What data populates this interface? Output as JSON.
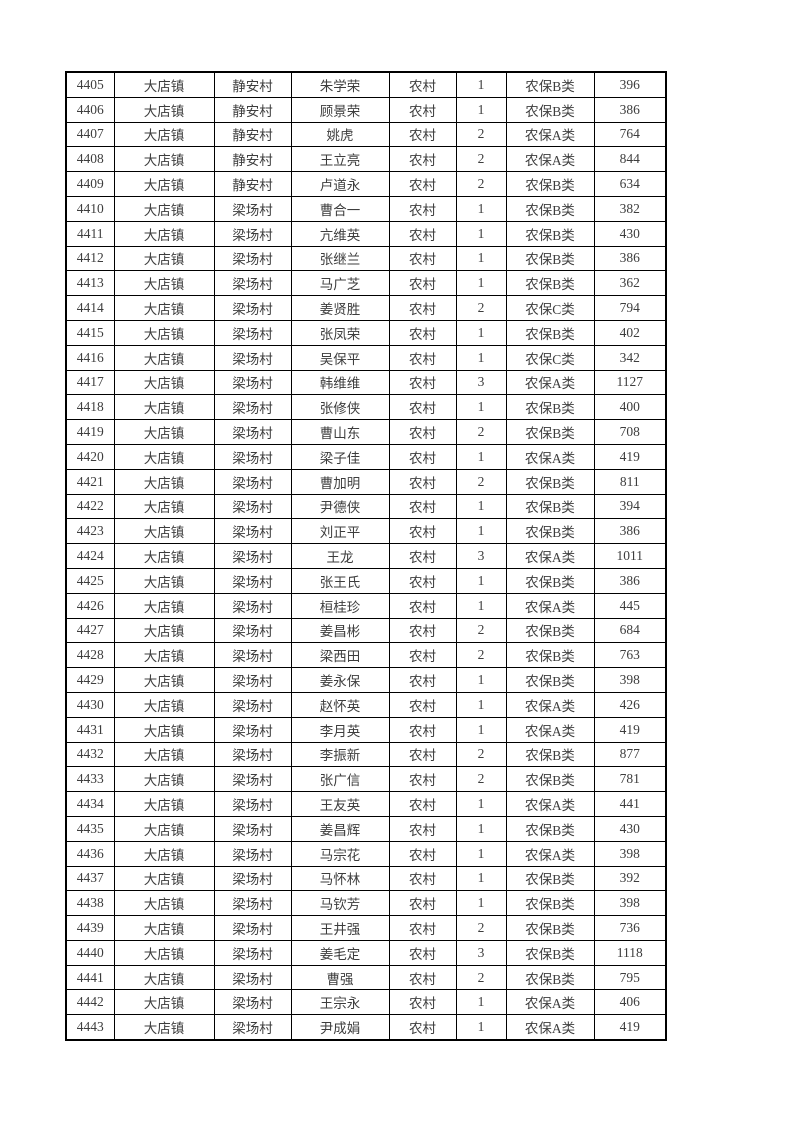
{
  "page": {
    "background_color": "#ffffff",
    "text_color": "#3d3d3d",
    "border_color": "#000000"
  },
  "table": {
    "rows": [
      [
        "4405",
        "大店镇",
        "静安村",
        "朱学荣",
        "农村",
        "1",
        "农保B类",
        "396"
      ],
      [
        "4406",
        "大店镇",
        "静安村",
        "顾景荣",
        "农村",
        "1",
        "农保B类",
        "386"
      ],
      [
        "4407",
        "大店镇",
        "静安村",
        "姚虎",
        "农村",
        "2",
        "农保A类",
        "764"
      ],
      [
        "4408",
        "大店镇",
        "静安村",
        "王立亮",
        "农村",
        "2",
        "农保A类",
        "844"
      ],
      [
        "4409",
        "大店镇",
        "静安村",
        "卢道永",
        "农村",
        "2",
        "农保B类",
        "634"
      ],
      [
        "4410",
        "大店镇",
        "梁场村",
        "曹合一",
        "农村",
        "1",
        "农保B类",
        "382"
      ],
      [
        "4411",
        "大店镇",
        "梁场村",
        "亢维英",
        "农村",
        "1",
        "农保B类",
        "430"
      ],
      [
        "4412",
        "大店镇",
        "梁场村",
        "张继兰",
        "农村",
        "1",
        "农保B类",
        "386"
      ],
      [
        "4413",
        "大店镇",
        "梁场村",
        "马广芝",
        "农村",
        "1",
        "农保B类",
        "362"
      ],
      [
        "4414",
        "大店镇",
        "梁场村",
        "姜贤胜",
        "农村",
        "2",
        "农保C类",
        "794"
      ],
      [
        "4415",
        "大店镇",
        "梁场村",
        "张凤荣",
        "农村",
        "1",
        "农保B类",
        "402"
      ],
      [
        "4416",
        "大店镇",
        "梁场村",
        "吴保平",
        "农村",
        "1",
        "农保C类",
        "342"
      ],
      [
        "4417",
        "大店镇",
        "梁场村",
        "韩维维",
        "农村",
        "3",
        "农保A类",
        "1127"
      ],
      [
        "4418",
        "大店镇",
        "梁场村",
        "张修侠",
        "农村",
        "1",
        "农保B类",
        "400"
      ],
      [
        "4419",
        "大店镇",
        "梁场村",
        "曹山东",
        "农村",
        "2",
        "农保B类",
        "708"
      ],
      [
        "4420",
        "大店镇",
        "梁场村",
        "梁子佳",
        "农村",
        "1",
        "农保A类",
        "419"
      ],
      [
        "4421",
        "大店镇",
        "梁场村",
        "曹加明",
        "农村",
        "2",
        "农保B类",
        "811"
      ],
      [
        "4422",
        "大店镇",
        "梁场村",
        "尹德侠",
        "农村",
        "1",
        "农保B类",
        "394"
      ],
      [
        "4423",
        "大店镇",
        "梁场村",
        "刘正平",
        "农村",
        "1",
        "农保B类",
        "386"
      ],
      [
        "4424",
        "大店镇",
        "梁场村",
        "王龙",
        "农村",
        "3",
        "农保A类",
        "1011"
      ],
      [
        "4425",
        "大店镇",
        "梁场村",
        "张王氏",
        "农村",
        "1",
        "农保B类",
        "386"
      ],
      [
        "4426",
        "大店镇",
        "梁场村",
        "桓桂珍",
        "农村",
        "1",
        "农保A类",
        "445"
      ],
      [
        "4427",
        "大店镇",
        "梁场村",
        "姜昌彬",
        "农村",
        "2",
        "农保B类",
        "684"
      ],
      [
        "4428",
        "大店镇",
        "梁场村",
        "梁西田",
        "农村",
        "2",
        "农保B类",
        "763"
      ],
      [
        "4429",
        "大店镇",
        "梁场村",
        "姜永保",
        "农村",
        "1",
        "农保B类",
        "398"
      ],
      [
        "4430",
        "大店镇",
        "梁场村",
        "赵怀英",
        "农村",
        "1",
        "农保A类",
        "426"
      ],
      [
        "4431",
        "大店镇",
        "梁场村",
        "李月英",
        "农村",
        "1",
        "农保A类",
        "419"
      ],
      [
        "4432",
        "大店镇",
        "梁场村",
        "李振新",
        "农村",
        "2",
        "农保B类",
        "877"
      ],
      [
        "4433",
        "大店镇",
        "梁场村",
        "张广信",
        "农村",
        "2",
        "农保B类",
        "781"
      ],
      [
        "4434",
        "大店镇",
        "梁场村",
        "王友英",
        "农村",
        "1",
        "农保A类",
        "441"
      ],
      [
        "4435",
        "大店镇",
        "梁场村",
        "姜昌辉",
        "农村",
        "1",
        "农保B类",
        "430"
      ],
      [
        "4436",
        "大店镇",
        "梁场村",
        "马宗花",
        "农村",
        "1",
        "农保A类",
        "398"
      ],
      [
        "4437",
        "大店镇",
        "梁场村",
        "马怀林",
        "农村",
        "1",
        "农保B类",
        "392"
      ],
      [
        "4438",
        "大店镇",
        "梁场村",
        "马钦芳",
        "农村",
        "1",
        "农保B类",
        "398"
      ],
      [
        "4439",
        "大店镇",
        "梁场村",
        "王井强",
        "农村",
        "2",
        "农保B类",
        "736"
      ],
      [
        "4440",
        "大店镇",
        "梁场村",
        "姜毛定",
        "农村",
        "3",
        "农保B类",
        "1118"
      ],
      [
        "4441",
        "大店镇",
        "梁场村",
        "曹强",
        "农村",
        "2",
        "农保B类",
        "795"
      ],
      [
        "4442",
        "大店镇",
        "梁场村",
        "王宗永",
        "农村",
        "1",
        "农保A类",
        "406"
      ],
      [
        "4443",
        "大店镇",
        "梁场村",
        "尹成娟",
        "农村",
        "1",
        "农保A类",
        "419"
      ]
    ]
  }
}
